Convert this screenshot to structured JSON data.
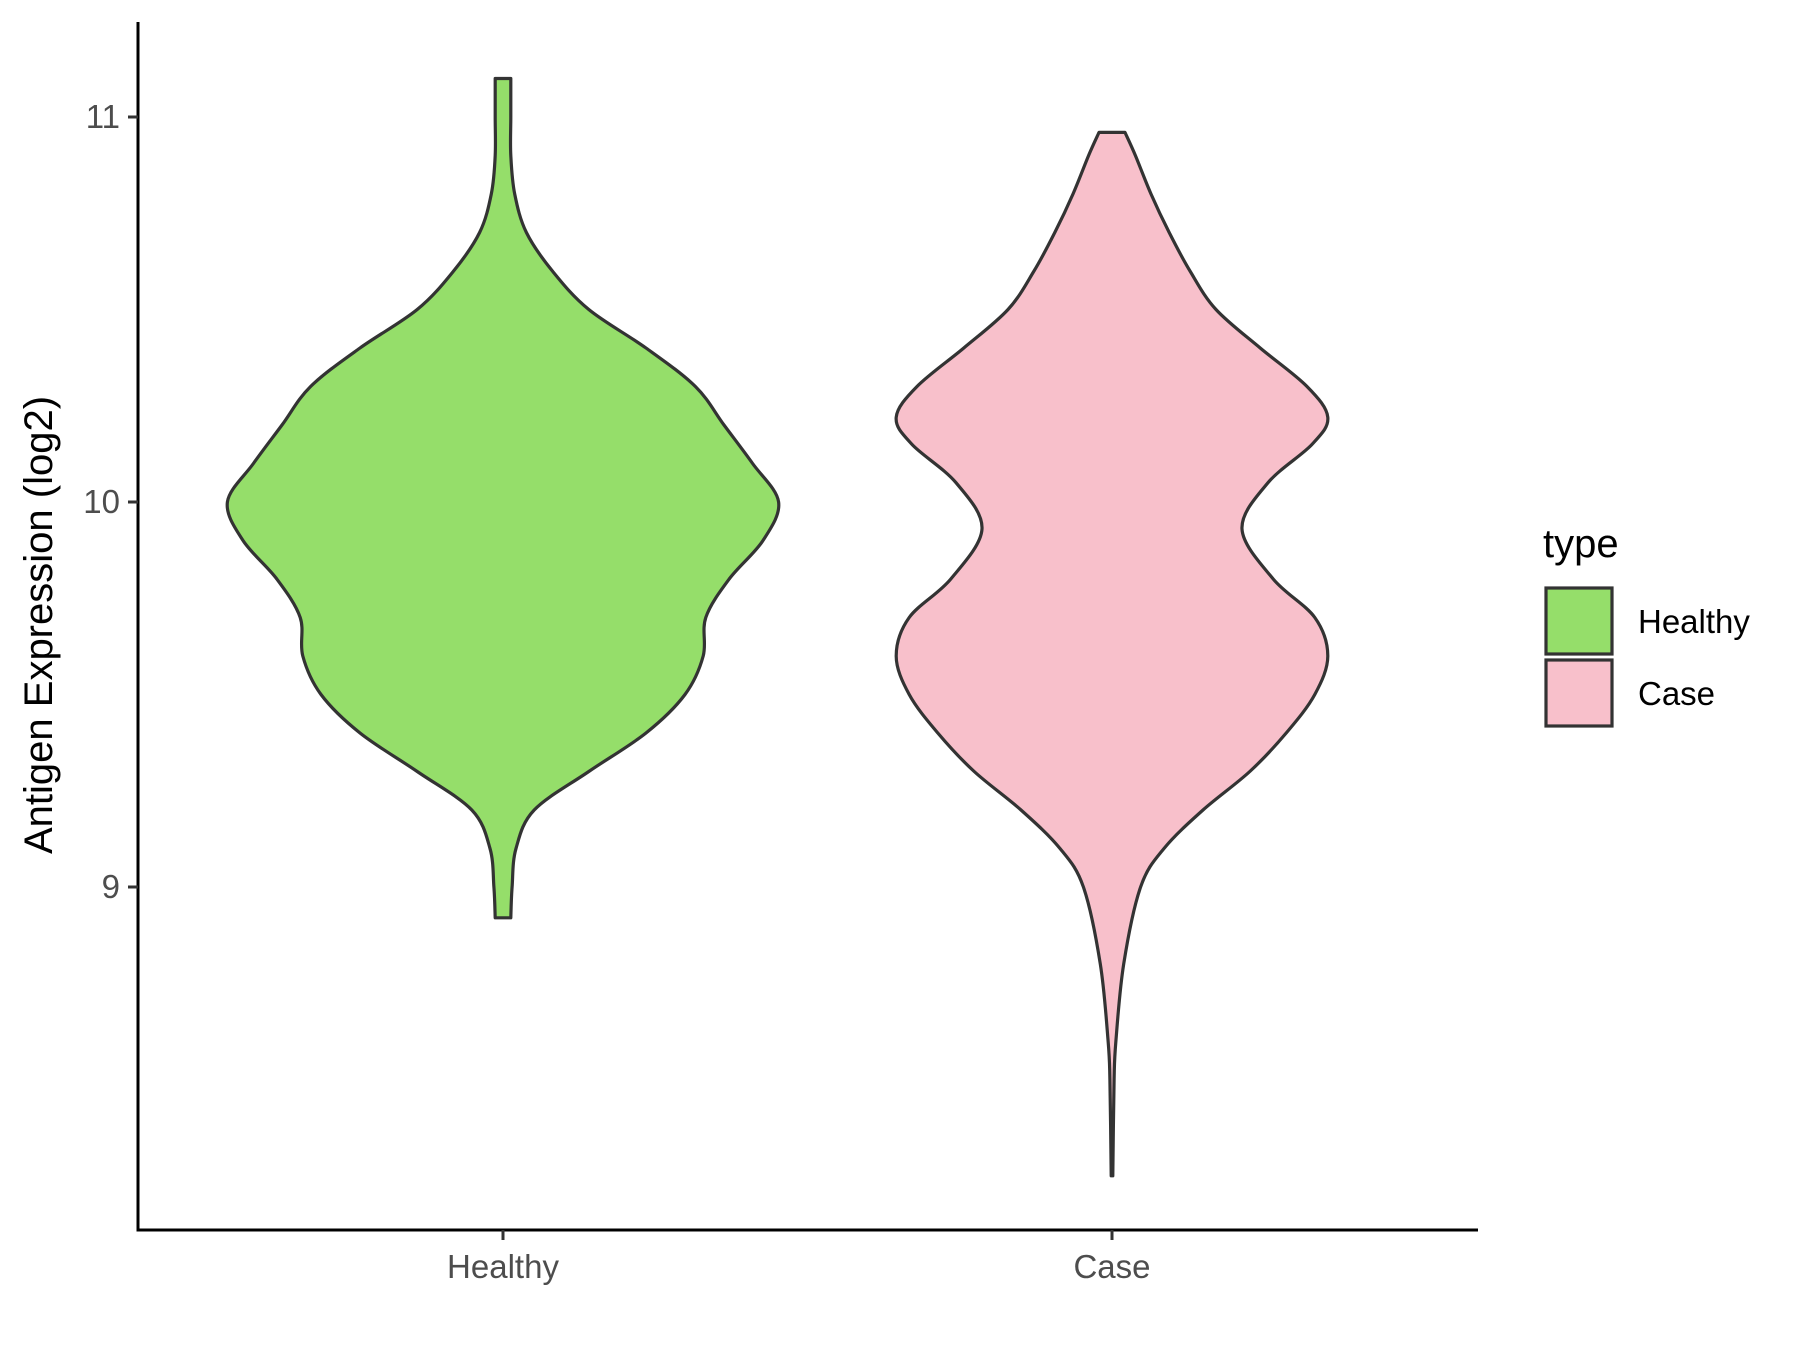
{
  "chart_data": {
    "type": "violin",
    "title": "",
    "xlabel": "",
    "ylabel": "Antigen Expression (log2)",
    "categories": [
      "Healthy",
      "Case"
    ],
    "y_ticks": [
      9,
      10,
      11
    ],
    "ylim": [
      8.1,
      11.25
    ],
    "grid": false,
    "legend": {
      "title": "type",
      "position": "right",
      "entries": [
        {
          "label": "Healthy",
          "color": "#95DE6A"
        },
        {
          "label": "Case",
          "color": "#F8C0CB"
        }
      ]
    },
    "series": [
      {
        "category": "Healthy",
        "color": "#95DE6A",
        "y_min": 8.92,
        "y_max": 11.1,
        "density_profile": [
          [
            8.92,
            0.03
          ],
          [
            9.0,
            0.035
          ],
          [
            9.1,
            0.05
          ],
          [
            9.2,
            0.12
          ],
          [
            9.3,
            0.33
          ],
          [
            9.4,
            0.55
          ],
          [
            9.5,
            0.7
          ],
          [
            9.6,
            0.77
          ],
          [
            9.7,
            0.78
          ],
          [
            9.8,
            0.87
          ],
          [
            9.9,
            1.0
          ],
          [
            10.0,
            1.06
          ],
          [
            10.1,
            0.96
          ],
          [
            10.2,
            0.85
          ],
          [
            10.3,
            0.74
          ],
          [
            10.4,
            0.55
          ],
          [
            10.5,
            0.33
          ],
          [
            10.6,
            0.19
          ],
          [
            10.7,
            0.09
          ],
          [
            10.8,
            0.045
          ],
          [
            10.9,
            0.03
          ],
          [
            11.0,
            0.03
          ],
          [
            11.1,
            0.03
          ]
        ]
      },
      {
        "category": "Case",
        "color": "#F8C0CB",
        "y_min": 8.25,
        "y_max": 10.96,
        "density_profile": [
          [
            8.25,
            0.003
          ],
          [
            8.5,
            0.008
          ],
          [
            8.6,
            0.015
          ],
          [
            8.8,
            0.045
          ],
          [
            9.0,
            0.11
          ],
          [
            9.1,
            0.2
          ],
          [
            9.2,
            0.35
          ],
          [
            9.3,
            0.53
          ],
          [
            9.4,
            0.67
          ],
          [
            9.5,
            0.78
          ],
          [
            9.6,
            0.83
          ],
          [
            9.7,
            0.78
          ],
          [
            9.8,
            0.62
          ],
          [
            9.93,
            0.5
          ],
          [
            10.05,
            0.6
          ],
          [
            10.15,
            0.77
          ],
          [
            10.22,
            0.83
          ],
          [
            10.3,
            0.75
          ],
          [
            10.4,
            0.57
          ],
          [
            10.5,
            0.4
          ],
          [
            10.6,
            0.3
          ],
          [
            10.7,
            0.22
          ],
          [
            10.8,
            0.15
          ],
          [
            10.9,
            0.09
          ],
          [
            10.96,
            0.05
          ]
        ]
      }
    ]
  }
}
